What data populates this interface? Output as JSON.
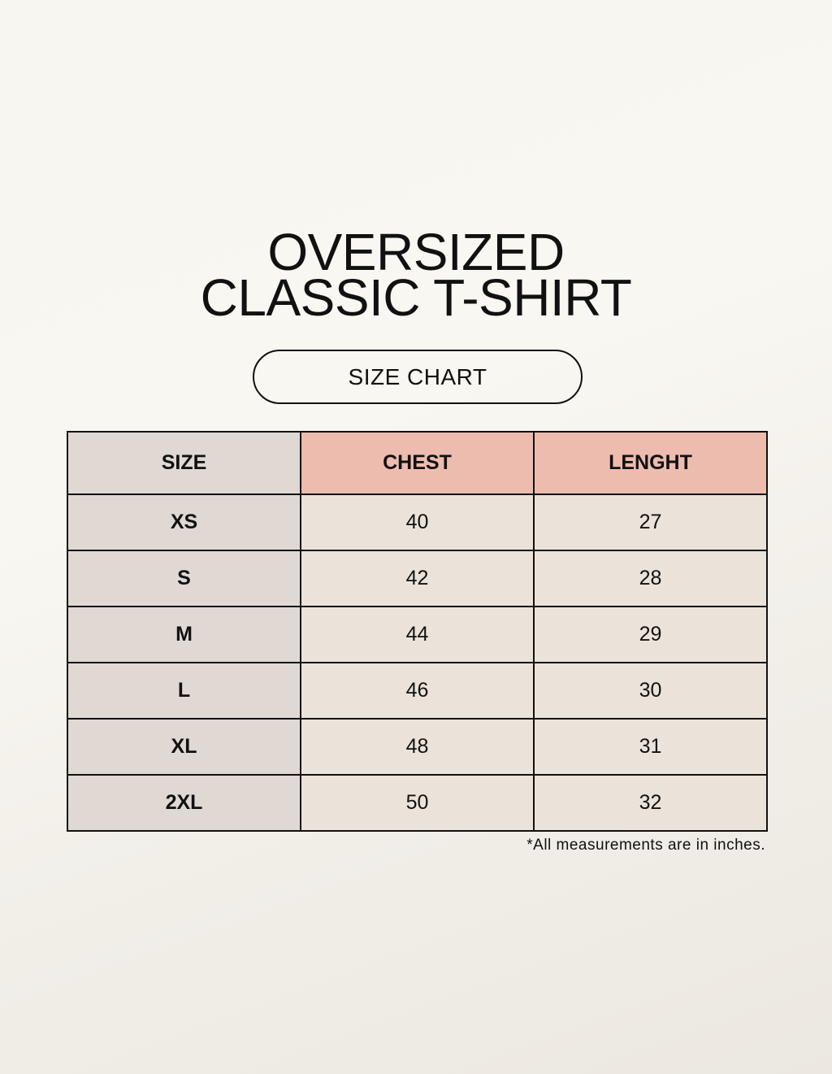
{
  "title": {
    "line1": "OVERSIZED",
    "line2": "CLASSIC T-SHIRT"
  },
  "badge": "SIZE CHART",
  "colors": {
    "size_column": "#e0d8d3",
    "header_accent": "#eebcaf",
    "value_cells": "#ebe3d9"
  },
  "table": {
    "headers": [
      "SIZE",
      "CHEST",
      "LENGHT"
    ],
    "rows": [
      [
        "XS",
        "40",
        "27"
      ],
      [
        "S",
        "42",
        "28"
      ],
      [
        "M",
        "44",
        "29"
      ],
      [
        "L",
        "46",
        "30"
      ],
      [
        "XL",
        "48",
        "31"
      ],
      [
        "2XL",
        "50",
        "32"
      ]
    ]
  },
  "footnote": "*All measurements are in inches."
}
